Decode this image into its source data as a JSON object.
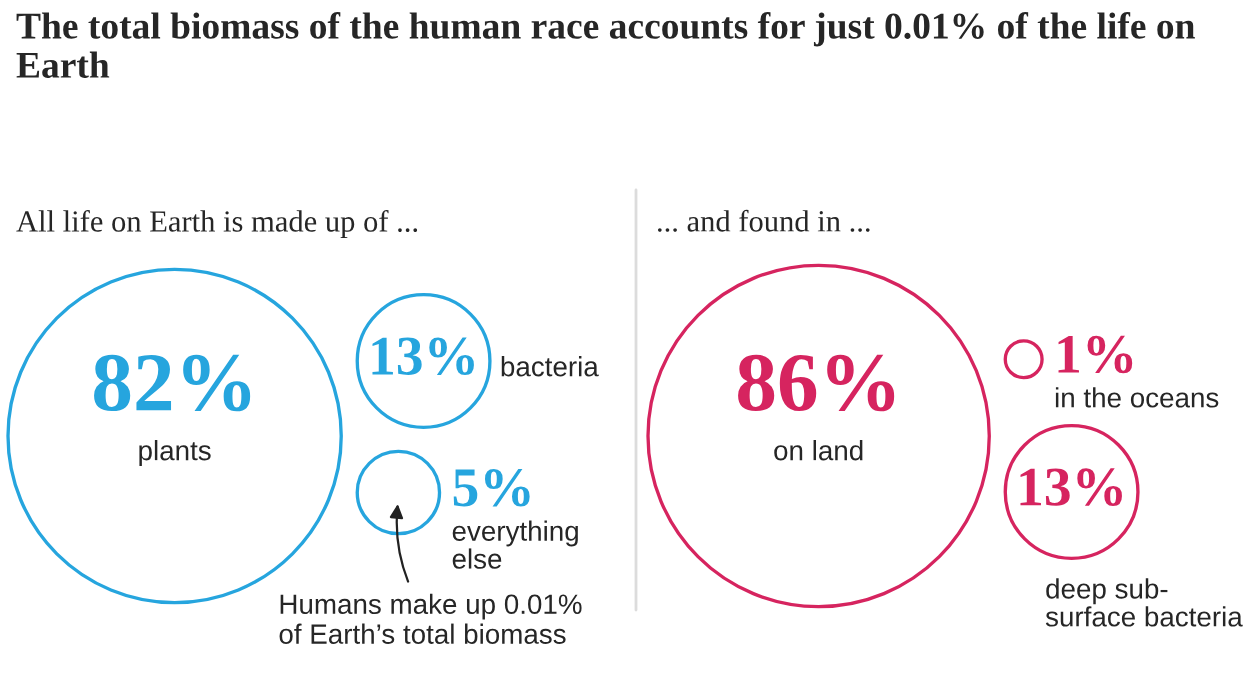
{
  "chart_data": [
    {
      "type": "other",
      "title": "The total biomass of the human race accounts for just 0.01% of the life on Earth",
      "subtitle": "All life on Earth is made up of ...",
      "categories": [
        "plants",
        "bacteria",
        "everything\nelse"
      ],
      "values": [
        82,
        13,
        5
      ],
      "value_labels": [
        "82%",
        "13%",
        "5%"
      ],
      "colors": [
        "#26a5de",
        "#26a5de",
        "#26a5de"
      ],
      "annotations": [
        "Humans make up 0.01%\nof Earth’s total biomass"
      ]
    },
    {
      "type": "other",
      "subtitle": "... and found in ...",
      "categories": [
        "on land",
        "in the oceans",
        "deep sub-\nsurface bacteria"
      ],
      "values": [
        86,
        1,
        13
      ],
      "value_labels": [
        "86%",
        "1%",
        "13%"
      ],
      "colors": [
        "#d6245f",
        "#d6245f",
        "#d6245f"
      ]
    }
  ]
}
